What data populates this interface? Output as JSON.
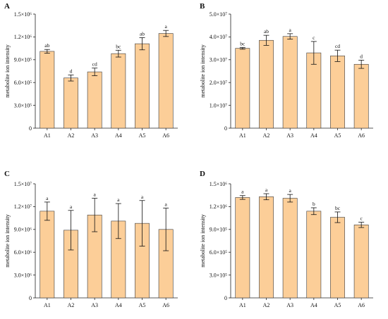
{
  "figure": {
    "style": {
      "bar_fill": "#FCCE98",
      "bar_stroke": "#3a3a3a",
      "axis_color": "#222222",
      "text_color": "#111111"
    }
  },
  "chart_data": [
    {
      "panel": "A",
      "type": "bar",
      "categories": [
        "A1",
        "A2",
        "A3",
        "A4",
        "A5",
        "A6"
      ],
      "values": [
        1010000,
        660000,
        740000,
        980000,
        1110000,
        1245000
      ],
      "errors": [
        25000,
        40000,
        50000,
        45000,
        80000,
        40000
      ],
      "significance": [
        "ab",
        "d",
        "cd",
        "bc",
        "ab",
        "a"
      ],
      "ylabel": "metabolite ion intensity",
      "ylim": [
        0,
        1500000
      ],
      "ytick_values": [
        0,
        300000,
        600000,
        900000,
        1200000,
        1500000
      ],
      "ytick_labels": [
        "0",
        "3.0×10⁵",
        "6.0×10⁵",
        "9.0×10⁵",
        "1.2×10⁶",
        "1.5×10⁶"
      ],
      "grid": false
    },
    {
      "panel": "B",
      "type": "bar",
      "categories": [
        "A1",
        "A2",
        "A3",
        "A4",
        "A5",
        "A6"
      ],
      "values": [
        35000000,
        38500000,
        40200000,
        33000000,
        31700000,
        28000000
      ],
      "errors": [
        400000,
        2200000,
        1200000,
        5000000,
        2500000,
        1800000
      ],
      "significance": [
        "bc",
        "ab",
        "a",
        "c",
        "cd",
        "d"
      ],
      "ylabel": "metabolite ion intensity",
      "ylim": [
        0,
        50000000
      ],
      "ytick_values": [
        0,
        10000000,
        20000000,
        30000000,
        40000000,
        50000000
      ],
      "ytick_labels": [
        "0",
        "1.0×10⁷",
        "2.0×10⁷",
        "3.0×10⁷",
        "4.0×10⁷",
        "5.0×10⁷"
      ],
      "grid": false
    },
    {
      "panel": "C",
      "type": "bar",
      "categories": [
        "A1",
        "A2",
        "A3",
        "A4",
        "A5",
        "A6"
      ],
      "values": [
        11400000,
        8900000,
        10900000,
        10100000,
        9800000,
        9000000
      ],
      "errors": [
        1200000,
        2600000,
        2200000,
        2300000,
        3000000,
        2800000
      ],
      "significance": [
        "a",
        "a",
        "a",
        "a",
        "a",
        "a"
      ],
      "ylabel": "metabolite ion intensity",
      "ylim": [
        0,
        15000000
      ],
      "ytick_values": [
        0,
        3000000,
        6000000,
        9000000,
        12000000,
        15000000
      ],
      "ytick_labels": [
        "0",
        "3.0×10⁶",
        "6.0×10⁶",
        "9.0×10⁶",
        "1.2×10⁷",
        "1.5×10⁷"
      ],
      "grid": false
    },
    {
      "panel": "D",
      "type": "bar",
      "categories": [
        "A1",
        "A2",
        "A3",
        "A4",
        "A5",
        "A6"
      ],
      "values": [
        1320000,
        1330000,
        1310000,
        1140000,
        1060000,
        960000
      ],
      "errors": [
        25000,
        40000,
        50000,
        45000,
        70000,
        35000
      ],
      "significance": [
        "a",
        "a",
        "a",
        "b",
        "bc",
        "c"
      ],
      "ylabel": "metabolite ion intensity",
      "ylim": [
        0,
        1500000
      ],
      "ytick_values": [
        0,
        300000,
        600000,
        900000,
        1200000,
        1500000
      ],
      "ytick_labels": [
        "0",
        "3.0×10⁵",
        "6.0×10⁵",
        "9.0×10⁵",
        "1.2×10⁶",
        "1.5×10⁶"
      ],
      "grid": false
    }
  ]
}
